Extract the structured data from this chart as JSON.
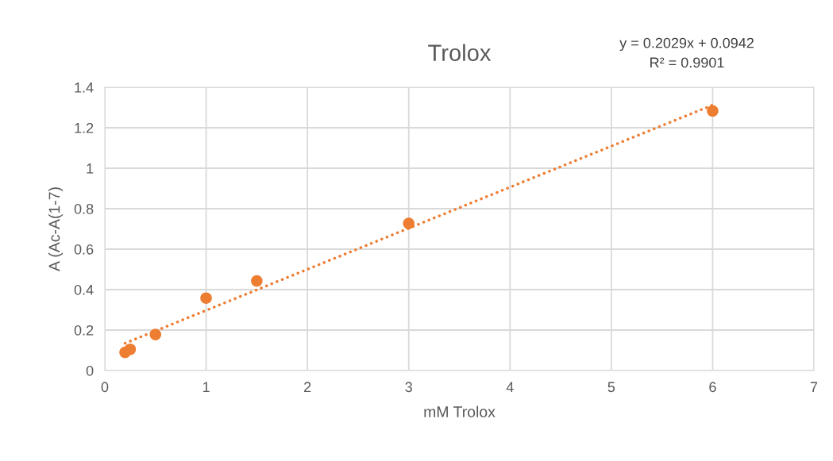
{
  "chart_data": {
    "type": "scatter",
    "title": "Trolox",
    "xlabel": "mM Trolox",
    "ylabel": "A (Ac-A(1-7)",
    "annotations": [
      "y = 0.2029x + 0.0942\nR² = 0.9901"
    ],
    "series": [
      {
        "color": "#ed7d31",
        "marker": "circle",
        "x": [
          0.2,
          0.25,
          0.5,
          1,
          1.5,
          3,
          6
        ],
        "values": [
          0.09,
          0.105,
          0.178,
          0.358,
          0.443,
          0.727,
          1.283
        ]
      },
      {
        "type": "line",
        "color": "#ed7d31",
        "line_style": "dotted",
        "marker": "none",
        "x": [
          0.2,
          6
        ],
        "values": [
          0.135,
          1.312
        ]
      }
    ],
    "xlim": [
      0,
      7
    ],
    "xticks": [
      0,
      1,
      2,
      3,
      4,
      5,
      6,
      7
    ],
    "ylim": [
      0,
      1.4
    ],
    "yticks": [
      0,
      0.2,
      0.4,
      0.6,
      0.8,
      1,
      1.2,
      1.4
    ],
    "grid": true,
    "legend": false
  }
}
